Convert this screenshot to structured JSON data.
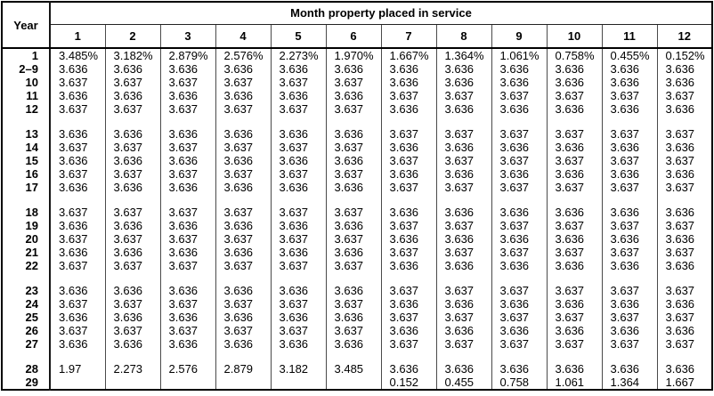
{
  "table": {
    "year_header": "Year",
    "month_group_header": "Month property placed in service",
    "month_columns": [
      "1",
      "2",
      "3",
      "4",
      "5",
      "6",
      "7",
      "8",
      "9",
      "10",
      "11",
      "12"
    ],
    "groups": [
      {
        "rows": [
          {
            "year": "1",
            "values": [
              "3.485%",
              "3.182%",
              "2.879%",
              "2.576%",
              "2.273%",
              "1.970%",
              "1.667%",
              "1.364%",
              "1.061%",
              "0.758%",
              "0.455%",
              "0.152%"
            ]
          },
          {
            "year": "2–9",
            "values": [
              "3.636",
              "3.636",
              "3.636",
              "3.636",
              "3.636",
              "3.636",
              "3.636",
              "3.636",
              "3.636",
              "3.636",
              "3.636",
              "3.636"
            ]
          },
          {
            "year": "10",
            "values": [
              "3.637",
              "3.637",
              "3.637",
              "3.637",
              "3.637",
              "3.637",
              "3.636",
              "3.636",
              "3.636",
              "3.636",
              "3.636",
              "3.636"
            ]
          },
          {
            "year": "11",
            "values": [
              "3.636",
              "3.636",
              "3.636",
              "3.636",
              "3.636",
              "3.636",
              "3.637",
              "3.637",
              "3.637",
              "3.637",
              "3.637",
              "3.637"
            ]
          },
          {
            "year": "12",
            "values": [
              "3.637",
              "3.637",
              "3.637",
              "3.637",
              "3.637",
              "3.637",
              "3.636",
              "3.636",
              "3.636",
              "3.636",
              "3.636",
              "3.636"
            ]
          }
        ]
      },
      {
        "rows": [
          {
            "year": "13",
            "values": [
              "3.636",
              "3.636",
              "3.636",
              "3.636",
              "3.636",
              "3.636",
              "3.637",
              "3.637",
              "3.637",
              "3.637",
              "3.637",
              "3.637"
            ]
          },
          {
            "year": "14",
            "values": [
              "3.637",
              "3.637",
              "3.637",
              "3.637",
              "3.637",
              "3.637",
              "3.636",
              "3.636",
              "3.636",
              "3.636",
              "3.636",
              "3.636"
            ]
          },
          {
            "year": "15",
            "values": [
              "3.636",
              "3.636",
              "3.636",
              "3.636",
              "3.636",
              "3.636",
              "3.637",
              "3.637",
              "3.637",
              "3.637",
              "3.637",
              "3.637"
            ]
          },
          {
            "year": "16",
            "values": [
              "3.637",
              "3.637",
              "3.637",
              "3.637",
              "3.637",
              "3.637",
              "3.636",
              "3.636",
              "3.636",
              "3.636",
              "3.636",
              "3.636"
            ]
          },
          {
            "year": "17",
            "values": [
              "3.636",
              "3.636",
              "3.636",
              "3.636",
              "3.636",
              "3.636",
              "3.637",
              "3.637",
              "3.637",
              "3.637",
              "3.637",
              "3.637"
            ]
          }
        ]
      },
      {
        "rows": [
          {
            "year": "18",
            "values": [
              "3.637",
              "3.637",
              "3.637",
              "3.637",
              "3.637",
              "3.637",
              "3.636",
              "3.636",
              "3.636",
              "3.636",
              "3.636",
              "3.636"
            ]
          },
          {
            "year": "19",
            "values": [
              "3.636",
              "3.636",
              "3.636",
              "3.636",
              "3.636",
              "3.636",
              "3.637",
              "3.637",
              "3.637",
              "3.637",
              "3.637",
              "3.637"
            ]
          },
          {
            "year": "20",
            "values": [
              "3.637",
              "3.637",
              "3.637",
              "3.637",
              "3.637",
              "3.637",
              "3.636",
              "3.636",
              "3.636",
              "3.636",
              "3.636",
              "3.636"
            ]
          },
          {
            "year": "21",
            "values": [
              "3.636",
              "3.636",
              "3.636",
              "3.636",
              "3.636",
              "3.636",
              "3.637",
              "3.637",
              "3.637",
              "3.637",
              "3.637",
              "3.637"
            ]
          },
          {
            "year": "22",
            "values": [
              "3.637",
              "3.637",
              "3.637",
              "3.637",
              "3.637",
              "3.637",
              "3.636",
              "3.636",
              "3.636",
              "3.636",
              "3.636",
              "3.636"
            ]
          }
        ]
      },
      {
        "rows": [
          {
            "year": "23",
            "values": [
              "3.636",
              "3.636",
              "3.636",
              "3.636",
              "3.636",
              "3.636",
              "3.637",
              "3.637",
              "3.637",
              "3.637",
              "3.637",
              "3.637"
            ]
          },
          {
            "year": "24",
            "values": [
              "3.637",
              "3.637",
              "3.637",
              "3.637",
              "3.637",
              "3.637",
              "3.636",
              "3.636",
              "3.636",
              "3.636",
              "3.636",
              "3.636"
            ]
          },
          {
            "year": "25",
            "values": [
              "3.636",
              "3.636",
              "3.636",
              "3.636",
              "3.636",
              "3.636",
              "3.637",
              "3.637",
              "3.637",
              "3.637",
              "3.637",
              "3.637"
            ]
          },
          {
            "year": "26",
            "values": [
              "3.637",
              "3.637",
              "3.637",
              "3.637",
              "3.637",
              "3.637",
              "3.636",
              "3.636",
              "3.636",
              "3.636",
              "3.636",
              "3.636"
            ]
          },
          {
            "year": "27",
            "values": [
              "3.636",
              "3.636",
              "3.636",
              "3.636",
              "3.636",
              "3.636",
              "3.637",
              "3.637",
              "3.637",
              "3.637",
              "3.637",
              "3.637"
            ]
          }
        ]
      },
      {
        "rows": [
          {
            "year": "28",
            "values": [
              "1.97",
              "2.273",
              "2.576",
              "2.879",
              "3.182",
              "3.485",
              "3.636",
              "3.636",
              "3.636",
              "3.636",
              "3.636",
              "3.636"
            ]
          },
          {
            "year": "29",
            "values": [
              "",
              "",
              "",
              "",
              "",
              "",
              "0.152",
              "0.455",
              "0.758",
              "1.061",
              "1.364",
              "1.667"
            ]
          }
        ]
      }
    ]
  }
}
